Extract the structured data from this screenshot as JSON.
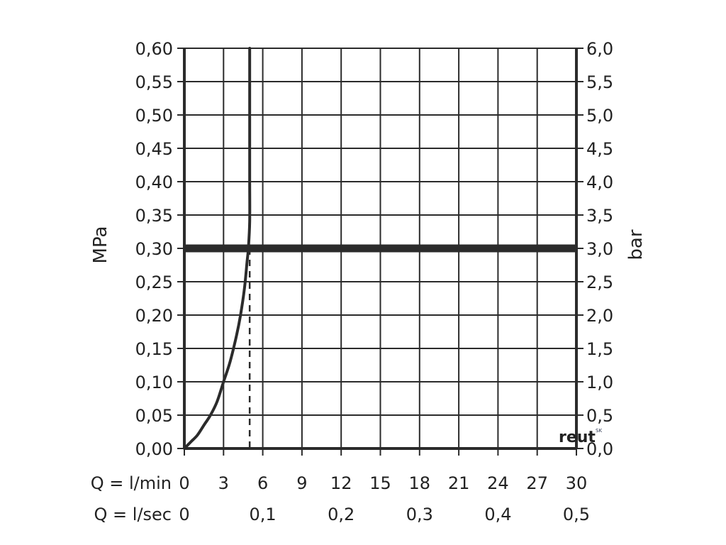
{
  "chart_data": {
    "type": "line",
    "title": "",
    "left_axis": {
      "label": "MPa",
      "ticks": [
        "0,00",
        "0,05",
        "0,10",
        "0,15",
        "0,20",
        "0,25",
        "0,30",
        "0,35",
        "0,40",
        "0,45",
        "0,50",
        "0,55",
        "0,60"
      ],
      "range": [
        0,
        0.6
      ]
    },
    "right_axis": {
      "label": "bar",
      "ticks": [
        "0,0",
        "0,5",
        "1,0",
        "1,5",
        "2,0",
        "2,5",
        "3,0",
        "3,5",
        "4,0",
        "4,5",
        "5,0",
        "5,5",
        "6,0"
      ],
      "range": [
        0,
        6
      ]
    },
    "x_axis_primary": {
      "label": "Q = l/min",
      "ticks": [
        "0",
        "3",
        "6",
        "9",
        "12",
        "15",
        "18",
        "21",
        "24",
        "27",
        "30"
      ],
      "range": [
        0,
        30
      ]
    },
    "x_axis_secondary": {
      "label": "Q = l/sec",
      "tick_values": [
        0,
        6,
        12,
        18,
        24,
        30
      ],
      "ticks": [
        "0",
        "0,1",
        "0,2",
        "0,3",
        "0,4",
        "0,5"
      ]
    },
    "grid": true,
    "series": [
      {
        "x": [
          0,
          0.5,
          1.0,
          1.5,
          2.0,
          2.5,
          3.0,
          3.5,
          4.0,
          4.3,
          4.6,
          4.8,
          4.9,
          5.0,
          5.0,
          5.0,
          5.0,
          5.0
        ],
        "y": [
          0,
          0.01,
          0.02,
          0.035,
          0.05,
          0.07,
          0.1,
          0.13,
          0.17,
          0.2,
          0.24,
          0.28,
          0.3,
          0.34,
          0.4,
          0.45,
          0.5,
          0.6
        ]
      }
    ],
    "reference_line": {
      "y": 0.3,
      "style": "thick-horizontal"
    },
    "reference_drop": {
      "x": 5.0,
      "y_top": 0.3,
      "style": "dashed-vertical"
    }
  },
  "watermark": {
    "text": "reut",
    "mark": "SK"
  }
}
